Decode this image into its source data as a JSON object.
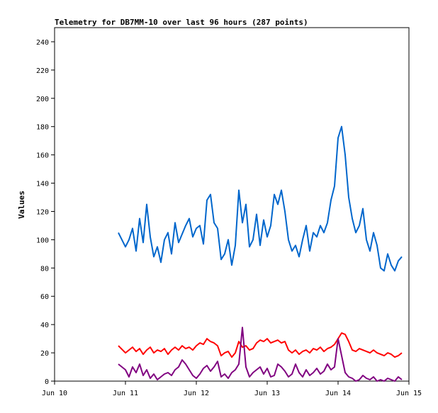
{
  "chart_data": {
    "type": "line",
    "title": "Telemetry for DB7MM-10 over last 96 hours (287 points)",
    "xlabel": "",
    "ylabel": "Values",
    "xlim": [
      "Jun 10",
      "Jun 15"
    ],
    "ylim": [
      0,
      250
    ],
    "y_ticks": [
      0,
      20,
      40,
      60,
      80,
      100,
      120,
      140,
      160,
      180,
      200,
      220,
      240
    ],
    "x_ticks": [
      "Jun 10",
      "Jun 11",
      "Jun 12",
      "Jun 13",
      "Jun 14",
      "Jun 15"
    ],
    "grid": false,
    "legend": "none",
    "series": [
      {
        "color": "#0066cc",
        "x": [
          0.9,
          1.0,
          1.05,
          1.1,
          1.15,
          1.2,
          1.25,
          1.3,
          1.35,
          1.4,
          1.45,
          1.5,
          1.55,
          1.6,
          1.65,
          1.7,
          1.75,
          1.8,
          1.85,
          1.9,
          1.95,
          2.0,
          2.05,
          2.1,
          2.15,
          2.2,
          2.25,
          2.3,
          2.35,
          2.4,
          2.45,
          2.5,
          2.55,
          2.6,
          2.65,
          2.7,
          2.75,
          2.8,
          2.85,
          2.9,
          2.95,
          3.0,
          3.05,
          3.1,
          3.15,
          3.2,
          3.25,
          3.3,
          3.35,
          3.4,
          3.45,
          3.5,
          3.55,
          3.6,
          3.65,
          3.7,
          3.75,
          3.8,
          3.85,
          3.9,
          3.95,
          4.0,
          4.05,
          4.1,
          4.15,
          4.2,
          4.25,
          4.3,
          4.35,
          4.4,
          4.45,
          4.5,
          4.55,
          4.6,
          4.65,
          4.7,
          4.75,
          4.8,
          4.85,
          4.9
        ],
        "y": [
          105,
          95,
          100,
          108,
          92,
          115,
          98,
          125,
          102,
          88,
          95,
          84,
          100,
          105,
          90,
          112,
          98,
          104,
          110,
          115,
          102,
          108,
          110,
          97,
          128,
          132,
          112,
          108,
          86,
          90,
          100,
          82,
          96,
          135,
          112,
          125,
          95,
          100,
          118,
          96,
          114,
          102,
          110,
          132,
          125,
          135,
          120,
          100,
          92,
          96,
          88,
          100,
          110,
          92,
          105,
          102,
          110,
          105,
          112,
          128,
          138,
          172,
          180,
          160,
          130,
          115,
          105,
          110,
          122,
          100,
          92,
          105,
          96,
          80,
          78,
          90,
          82,
          78,
          85,
          88
        ]
      },
      {
        "color": "#ff0000",
        "x": [
          0.9,
          1.0,
          1.05,
          1.1,
          1.15,
          1.2,
          1.25,
          1.3,
          1.35,
          1.4,
          1.45,
          1.5,
          1.55,
          1.6,
          1.65,
          1.7,
          1.75,
          1.8,
          1.85,
          1.9,
          1.95,
          2.0,
          2.05,
          2.1,
          2.15,
          2.2,
          2.25,
          2.3,
          2.35,
          2.4,
          2.45,
          2.5,
          2.55,
          2.6,
          2.65,
          2.7,
          2.75,
          2.8,
          2.85,
          2.9,
          2.95,
          3.0,
          3.05,
          3.1,
          3.15,
          3.2,
          3.25,
          3.3,
          3.35,
          3.4,
          3.45,
          3.5,
          3.55,
          3.6,
          3.65,
          3.7,
          3.75,
          3.8,
          3.85,
          3.9,
          3.95,
          4.0,
          4.05,
          4.1,
          4.15,
          4.2,
          4.25,
          4.3,
          4.35,
          4.4,
          4.45,
          4.5,
          4.55,
          4.6,
          4.65,
          4.7,
          4.75,
          4.8,
          4.85,
          4.9
        ],
        "y": [
          25,
          20,
          22,
          24,
          21,
          23,
          19,
          22,
          24,
          20,
          22,
          21,
          23,
          19,
          22,
          24,
          22,
          25,
          23,
          24,
          22,
          25,
          27,
          26,
          30,
          28,
          27,
          25,
          18,
          20,
          21,
          17,
          20,
          28,
          24,
          25,
          22,
          23,
          27,
          29,
          28,
          30,
          27,
          28,
          29,
          27,
          28,
          22,
          20,
          22,
          19,
          21,
          22,
          20,
          23,
          22,
          24,
          21,
          23,
          24,
          26,
          30,
          34,
          33,
          28,
          22,
          21,
          23,
          22,
          21,
          20,
          22,
          20,
          19,
          18,
          20,
          19,
          17,
          18,
          20
        ]
      },
      {
        "color": "#800080",
        "x": [
          0.9,
          1.0,
          1.05,
          1.1,
          1.15,
          1.2,
          1.25,
          1.3,
          1.35,
          1.4,
          1.45,
          1.5,
          1.55,
          1.6,
          1.65,
          1.7,
          1.75,
          1.8,
          1.85,
          1.9,
          1.95,
          2.0,
          2.05,
          2.1,
          2.15,
          2.2,
          2.25,
          2.3,
          2.35,
          2.4,
          2.45,
          2.5,
          2.55,
          2.6,
          2.65,
          2.7,
          2.75,
          2.8,
          2.85,
          2.9,
          2.95,
          3.0,
          3.05,
          3.1,
          3.15,
          3.2,
          3.25,
          3.3,
          3.35,
          3.4,
          3.45,
          3.5,
          3.55,
          3.6,
          3.65,
          3.7,
          3.75,
          3.8,
          3.85,
          3.9,
          3.95,
          4.0,
          4.05,
          4.1,
          4.15,
          4.2,
          4.25,
          4.3,
          4.35,
          4.4,
          4.45,
          4.5,
          4.55,
          4.6,
          4.65,
          4.7,
          4.75,
          4.8,
          4.85,
          4.9
        ],
        "y": [
          12,
          8,
          3,
          10,
          6,
          12,
          4,
          8,
          2,
          5,
          1,
          3,
          5,
          6,
          4,
          8,
          10,
          15,
          12,
          8,
          4,
          2,
          5,
          9,
          11,
          7,
          10,
          14,
          3,
          5,
          2,
          6,
          8,
          12,
          38,
          10,
          3,
          6,
          8,
          10,
          5,
          9,
          3,
          4,
          12,
          10,
          7,
          3,
          5,
          12,
          6,
          3,
          8,
          4,
          6,
          9,
          5,
          7,
          12,
          8,
          10,
          30,
          18,
          6,
          3,
          2,
          0,
          1,
          4,
          2,
          1,
          3,
          0,
          1,
          0,
          2,
          1,
          0,
          3,
          1
        ]
      }
    ]
  }
}
